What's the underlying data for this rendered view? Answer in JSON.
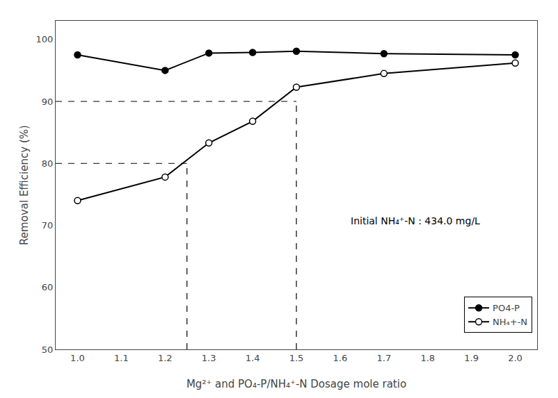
{
  "chart_data": {
    "type": "line",
    "x_label": "Mg²⁺ and PO₄-P/NH₄⁺-N Dosage mole ratio",
    "y_label": "Removal Efficiency (%)",
    "x": [
      1.0,
      1.2,
      1.3,
      1.4,
      1.5,
      1.7,
      2.0
    ],
    "series": [
      {
        "name": "PO4-P",
        "color": "black",
        "marker": "filled circle",
        "values": [
          97.5,
          95.0,
          97.8,
          97.9,
          98.1,
          97.7,
          97.5
        ]
      },
      {
        "name": "NH₄+-N",
        "color": "black",
        "marker": "open circle",
        "values": [
          74.0,
          77.8,
          83.3,
          86.8,
          92.3,
          94.5,
          96.2
        ]
      }
    ],
    "reference_lines": [
      {
        "x": [
          0.95,
          1.25
        ],
        "y": [
          80,
          80
        ],
        "color": "black",
        "line_style": "dashed"
      },
      {
        "x": [
          1.25,
          1.25
        ],
        "y": [
          50,
          80
        ],
        "color": "black",
        "line_style": "dashed"
      },
      {
        "x": [
          0.95,
          1.5
        ],
        "y": [
          90,
          90
        ],
        "color": "black",
        "line_style": "dashed"
      },
      {
        "x": [
          1.5,
          1.5
        ],
        "y": [
          50,
          90
        ],
        "color": "black",
        "line_style": "dashed"
      }
    ],
    "annotations": [
      "Initial NH₄⁺-N : 434.0 mg/L"
    ],
    "xlim": [
      0.95,
      2.05
    ],
    "ylim": [
      50,
      103
    ],
    "xticks": [
      {
        "value": 1.0,
        "label": "1.0"
      },
      1.1,
      1.2,
      1.3,
      1.4,
      1.5,
      1.6,
      1.7,
      1.8,
      1.9,
      {
        "value": 2.0,
        "label": "2.0"
      }
    ],
    "yticks": [
      50,
      60,
      70,
      80,
      90,
      100
    ],
    "grid": false,
    "legend": "lower right"
  }
}
